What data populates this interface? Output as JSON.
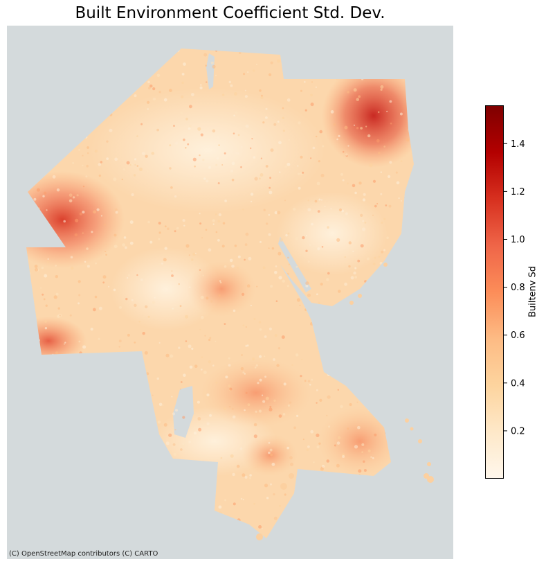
{
  "title": "Built Environment Coefficient Std. Dev.",
  "attribution": "(C) OpenStreetMap contributors (C) CARTO",
  "basemap_color": "#d4dadc",
  "colormap": {
    "name": "OrRd",
    "stops": [
      "#fff7ec",
      "#fee8c8",
      "#fdd49e",
      "#fdbb84",
      "#fc8d59",
      "#ef6548",
      "#d7301f",
      "#b30000",
      "#7f0000"
    ]
  },
  "colorbar": {
    "label": "Builtenv Sd",
    "min": 0.0,
    "max": 1.56,
    "ticks": [
      {
        "value": 0.2,
        "label": "0.2"
      },
      {
        "value": 0.4,
        "label": "0.4"
      },
      {
        "value": 0.6,
        "label": "0.6"
      },
      {
        "value": 0.8,
        "label": "0.8"
      },
      {
        "value": 1.0,
        "label": "1.0"
      },
      {
        "value": 1.2,
        "label": "1.2"
      },
      {
        "value": 1.4,
        "label": "1.4"
      }
    ]
  },
  "hotspots": [
    {
      "name": "northeast",
      "value": 1.2
    },
    {
      "name": "west",
      "value": 1.0
    },
    {
      "name": "southwest",
      "value": 0.85
    },
    {
      "name": "south-central",
      "value": 0.75
    }
  ]
}
